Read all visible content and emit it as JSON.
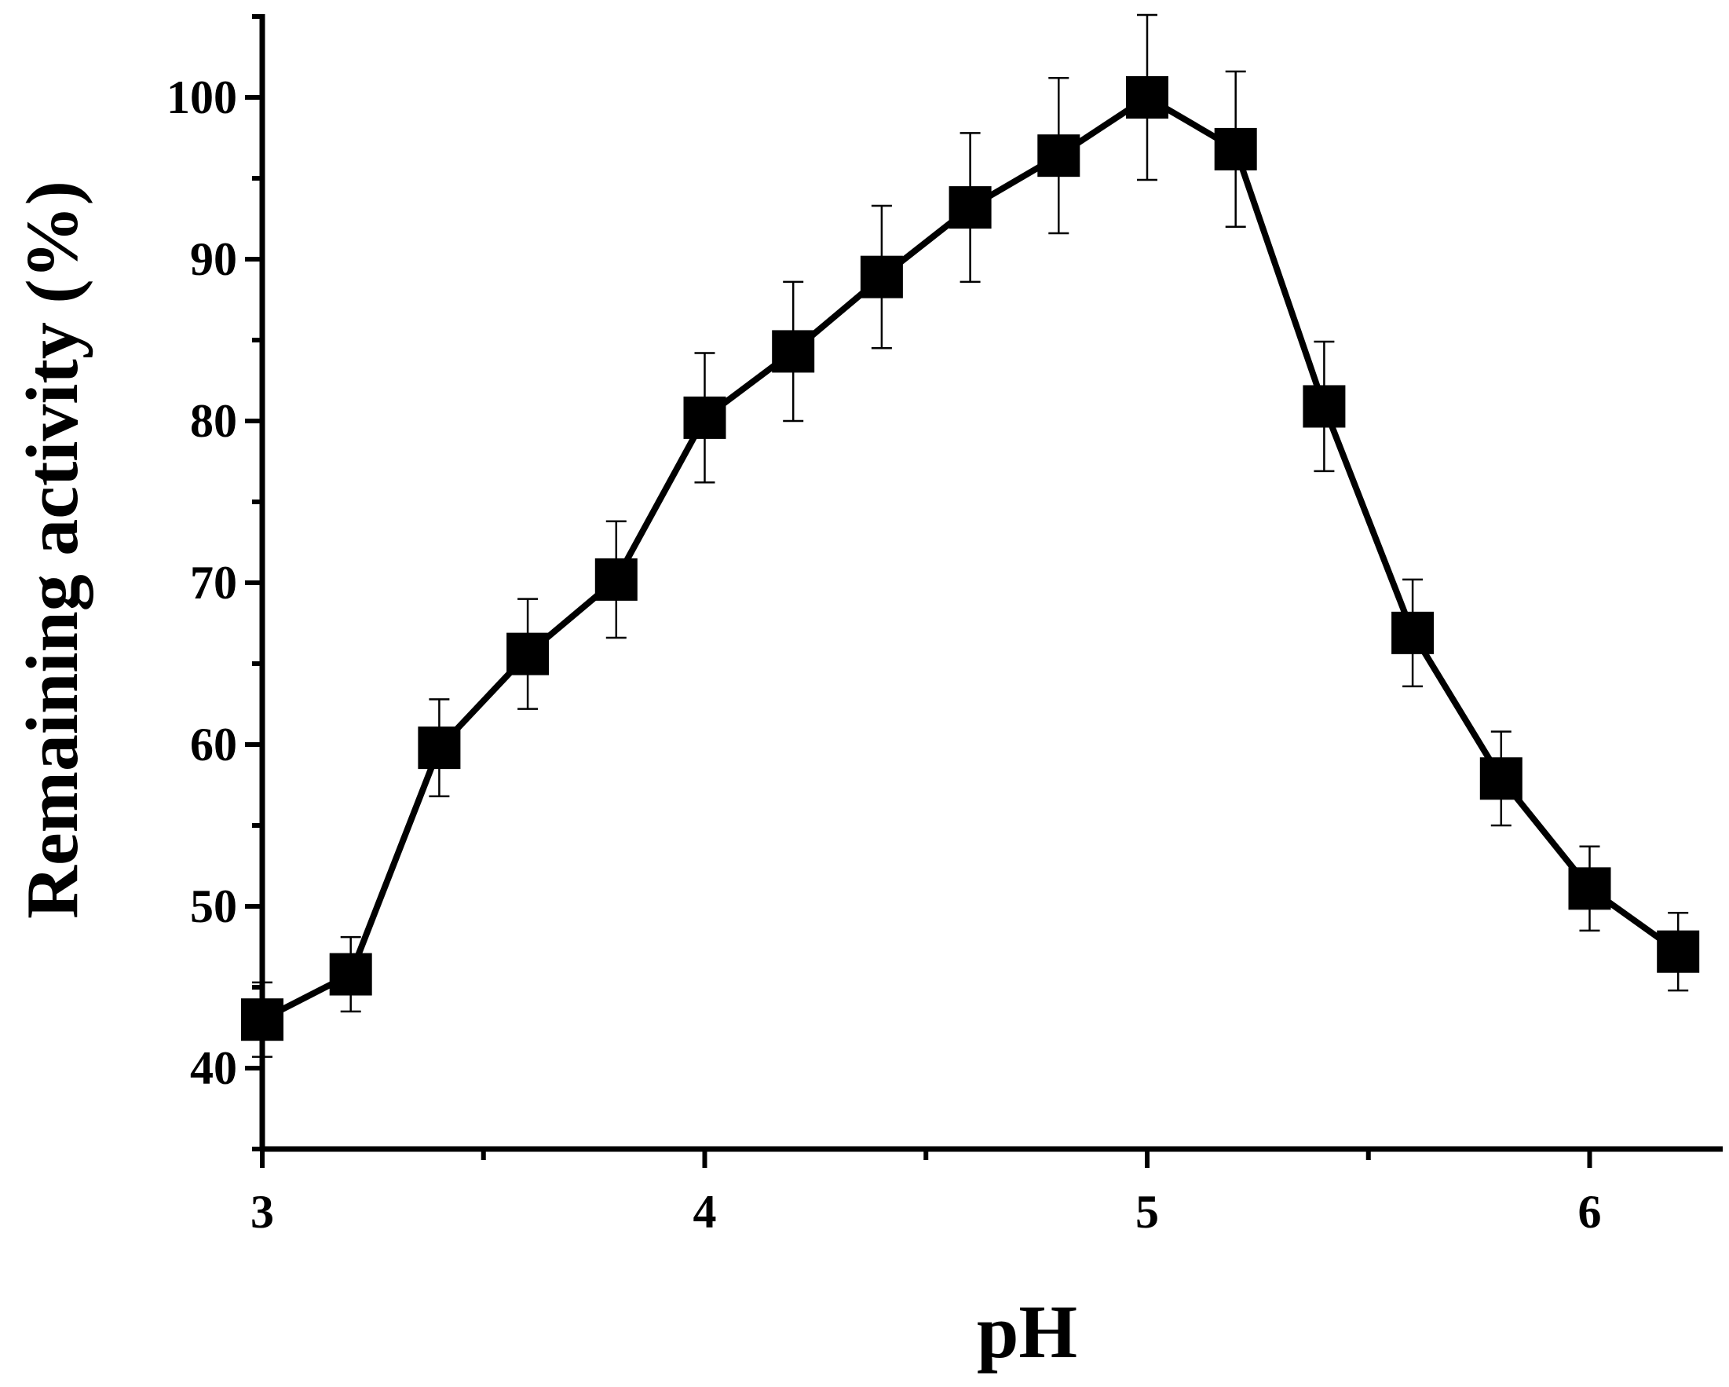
{
  "chart_data": {
    "type": "line",
    "title": "",
    "xlabel": "pH",
    "ylabel": "Remaining activity (%)",
    "xlim": [
      3,
      6.3
    ],
    "ylim": [
      35,
      105
    ],
    "x_ticks": [
      3,
      4,
      5,
      6
    ],
    "x_minor_ticks": [
      3.5,
      4.5,
      5.5
    ],
    "y_ticks": [
      40,
      50,
      60,
      70,
      80,
      90,
      100
    ],
    "y_minor_ticks": [
      35,
      45,
      55,
      65,
      75,
      85,
      95,
      105
    ],
    "grid": false,
    "legend": "none",
    "line_color": "#000000",
    "marker": "square",
    "series": [
      {
        "x": [
          3.0,
          3.2,
          3.4,
          3.6,
          3.8,
          4.0,
          4.2,
          4.4,
          4.6,
          4.8,
          5.0,
          5.2,
          5.4,
          5.6,
          5.8,
          6.0,
          6.2
        ],
        "y": [
          43.0,
          45.8,
          59.8,
          65.6,
          70.2,
          80.2,
          84.3,
          88.9,
          93.2,
          96.4,
          100.0,
          96.8,
          80.9,
          66.9,
          57.9,
          51.1,
          47.2
        ],
        "error": [
          2.3,
          2.3,
          3.0,
          3.4,
          3.6,
          4.0,
          4.3,
          4.4,
          4.6,
          4.8,
          5.1,
          4.8,
          4.0,
          3.3,
          2.9,
          2.6,
          2.4
        ]
      }
    ]
  }
}
